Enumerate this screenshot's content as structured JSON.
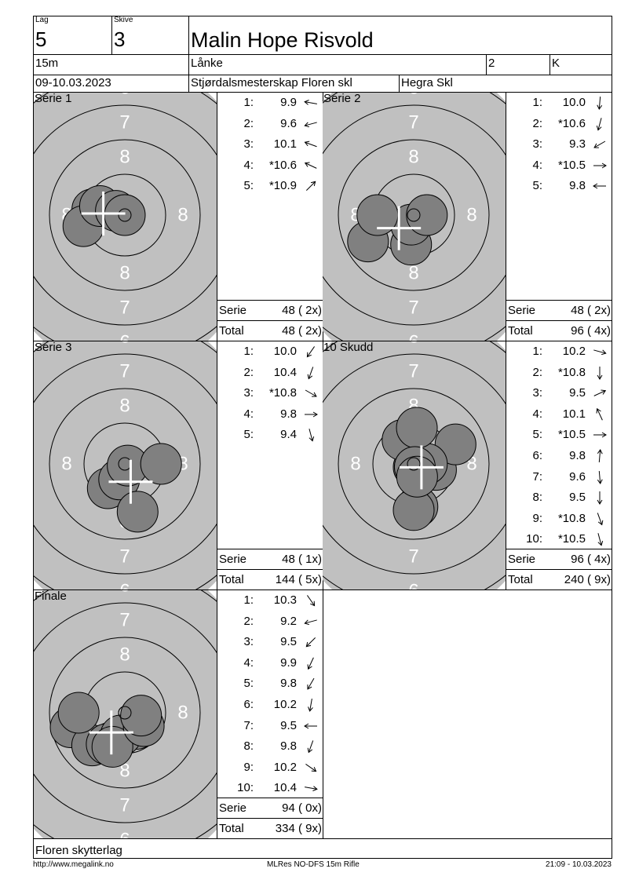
{
  "header": {
    "lag_label": "Lag",
    "lag": "5",
    "skive_label": "Skive",
    "skive": "3",
    "name": "Malin Hope Risvold",
    "distance": "15m",
    "class_name": "Lånke",
    "class_no": "2",
    "gender": "K",
    "date": "09-10.03.2023",
    "event": "Stjørdalsmesterskap Floren skl",
    "club": "Hegra Skl"
  },
  "target": {
    "ring_labels": {
      "r8": "8",
      "r7": "7",
      "r6": "6"
    },
    "colors": {
      "face": "#c0c0c0",
      "shot": "#808080",
      "cross": "#ffffff"
    }
  },
  "sums": {
    "serie_label": "Serie",
    "total_label": "Total"
  },
  "blocks": [
    {
      "title": "Serie 1",
      "shots": [
        {
          "n": "1:",
          "score": "9.9",
          "dir": 280
        },
        {
          "n": "2:",
          "score": "9.6",
          "dir": 255
        },
        {
          "n": "3:",
          "score": "10.1",
          "dir": 290
        },
        {
          "n": "4:",
          "score": "*10.6",
          "dir": 295
        },
        {
          "n": "5:",
          "score": "*10.9",
          "dir": 45
        }
      ],
      "serie": "48 ( 2x)",
      "total": "48 ( 2x)"
    },
    {
      "title": "Serie 2",
      "shots": [
        {
          "n": "1:",
          "score": "10.0",
          "dir": 185
        },
        {
          "n": "2:",
          "score": "*10.6",
          "dir": 195
        },
        {
          "n": "3:",
          "score": "9.3",
          "dir": 240
        },
        {
          "n": "4:",
          "score": "*10.5",
          "dir": 90
        },
        {
          "n": "5:",
          "score": "9.8",
          "dir": 270
        }
      ],
      "serie": "48 ( 2x)",
      "total": "96 ( 4x)"
    },
    {
      "title": "Serie 3",
      "shots": [
        {
          "n": "1:",
          "score": "10.0",
          "dir": 215
        },
        {
          "n": "2:",
          "score": "10.4",
          "dir": 200
        },
        {
          "n": "3:",
          "score": "*10.8",
          "dir": 120
        },
        {
          "n": "4:",
          "score": "9.8",
          "dir": 90
        },
        {
          "n": "5:",
          "score": "9.4",
          "dir": 165
        }
      ],
      "serie": "48 ( 1x)",
      "total": "144 ( 5x)"
    },
    {
      "title": "10 Skudd",
      "shots": [
        {
          "n": "1:",
          "score": "10.2",
          "dir": 105
        },
        {
          "n": "2:",
          "score": "*10.8",
          "dir": 180
        },
        {
          "n": "3:",
          "score": "9.5",
          "dir": 65
        },
        {
          "n": "4:",
          "score": "10.1",
          "dir": 335
        },
        {
          "n": "5:",
          "score": "*10.5",
          "dir": 90
        },
        {
          "n": "6:",
          "score": "9.8",
          "dir": 5
        },
        {
          "n": "7:",
          "score": "9.6",
          "dir": 175
        },
        {
          "n": "8:",
          "score": "9.5",
          "dir": 180
        },
        {
          "n": "9:",
          "score": "*10.8",
          "dir": 160
        },
        {
          "n": "10:",
          "score": "*10.5",
          "dir": 165
        }
      ],
      "serie": "96 ( 4x)",
      "total": "240 ( 9x)"
    },
    {
      "title": "Finale",
      "shots": [
        {
          "n": "1:",
          "score": "10.3",
          "dir": 145
        },
        {
          "n": "2:",
          "score": "9.2",
          "dir": 255
        },
        {
          "n": "3:",
          "score": "9.5",
          "dir": 225
        },
        {
          "n": "4:",
          "score": "9.9",
          "dir": 205
        },
        {
          "n": "5:",
          "score": "9.8",
          "dir": 210
        },
        {
          "n": "6:",
          "score": "10.2",
          "dir": 190
        },
        {
          "n": "7:",
          "score": "9.5",
          "dir": 270
        },
        {
          "n": "8:",
          "score": "9.8",
          "dir": 200
        },
        {
          "n": "9:",
          "score": "10.2",
          "dir": 125
        },
        {
          "n": "10:",
          "score": "10.4",
          "dir": 100
        }
      ],
      "serie": "94 ( 0x)",
      "total": "334 ( 9x)"
    }
  ],
  "footer": {
    "club": "Floren skytterlag",
    "url": "http://www.megalink.no",
    "program": "MLRes NO-DFS 15m Rifle",
    "timestamp": "21:09 - 10.03.2023"
  }
}
